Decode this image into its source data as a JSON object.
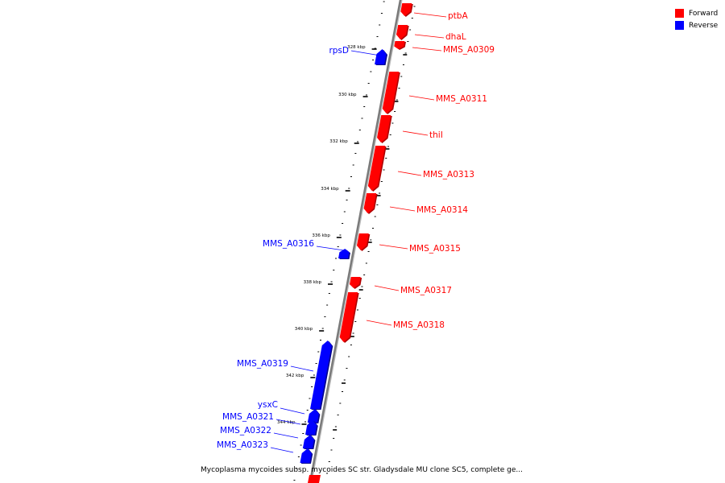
{
  "legend": {
    "forward_label": "Forward",
    "reverse_label": "Reverse",
    "forward_color": "#ff0000",
    "reverse_color": "#0000ff"
  },
  "caption": "Mycoplasma mycoides subsp. mycoides SC str. Gladysdale MU clone SC5, complete ge...",
  "colors": {
    "backbone": "#7a7a7a",
    "tick": "#000000",
    "forward": "#ff0000",
    "reverse": "#0000ff"
  },
  "ruler": {
    "unit": "kbp",
    "labels": [
      "328 kbp",
      "330 kbp",
      "332 kbp",
      "334 kbp",
      "336 kbp",
      "338 kbp",
      "340 kbp",
      "342 kbp",
      "344 kbp"
    ]
  },
  "genes": [
    {
      "label": "ptbA",
      "strand": "forward"
    },
    {
      "label": "dhaL",
      "strand": "forward"
    },
    {
      "label": "MMS_A0309",
      "strand": "forward"
    },
    {
      "label": "rpsD",
      "strand": "reverse"
    },
    {
      "label": "MMS_A0311",
      "strand": "forward"
    },
    {
      "label": "thiI",
      "strand": "forward"
    },
    {
      "label": "MMS_A0313",
      "strand": "forward"
    },
    {
      "label": "MMS_A0314",
      "strand": "forward"
    },
    {
      "label": "MMS_A0315",
      "strand": "forward"
    },
    {
      "label": "MMS_A0316",
      "strand": "reverse"
    },
    {
      "label": "MMS_A0317",
      "strand": "forward"
    },
    {
      "label": "MMS_A0318",
      "strand": "forward"
    },
    {
      "label": "MMS_A0319",
      "strand": "reverse"
    },
    {
      "label": "ysxC",
      "strand": "reverse"
    },
    {
      "label": "MMS_A0321",
      "strand": "reverse"
    },
    {
      "label": "MMS_A0322",
      "strand": "reverse"
    },
    {
      "label": "MMS_A0323",
      "strand": "reverse"
    }
  ]
}
